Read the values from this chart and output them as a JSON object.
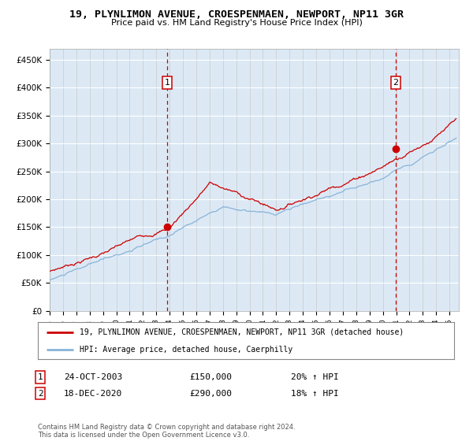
{
  "title": "19, PLYNLIMON AVENUE, CROESPENMAEN, NEWPORT, NP11 3GR",
  "subtitle": "Price paid vs. HM Land Registry's House Price Index (HPI)",
  "legend_line1": "19, PLYNLIMON AVENUE, CROESPENMAEN, NEWPORT, NP11 3GR (detached house)",
  "legend_line2": "HPI: Average price, detached house, Caerphilly",
  "annotation1_date": "24-OCT-2003",
  "annotation1_price": "£150,000",
  "annotation1_hpi": "20% ↑ HPI",
  "annotation1_year": 2003.82,
  "annotation1_value": 150000,
  "annotation2_date": "18-DEC-2020",
  "annotation2_price": "£290,000",
  "annotation2_hpi": "18% ↑ HPI",
  "annotation2_year": 2020.96,
  "annotation2_value": 290000,
  "background_color": "#dce9f5",
  "hpi_line_color": "#89b4d9",
  "price_line_color": "#cc0000",
  "marker_color": "#cc0000",
  "dashed_line_color": "#cc0000",
  "footer_text": "Contains HM Land Registry data © Crown copyright and database right 2024.\nThis data is licensed under the Open Government Licence v3.0.",
  "ylim": [
    0,
    470000
  ],
  "yticks": [
    0,
    50000,
    100000,
    150000,
    200000,
    250000,
    300000,
    350000,
    400000,
    450000
  ]
}
